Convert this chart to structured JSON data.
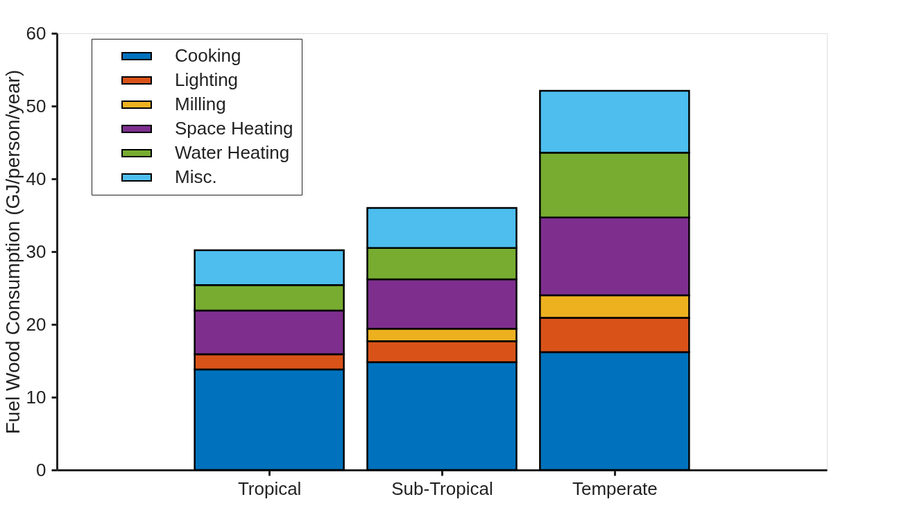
{
  "chart_data": {
    "type": "bar",
    "stacked": true,
    "ylabel": "Fuel Wood Consumption (GJ/person/year)",
    "categories": [
      "Tropical",
      "Sub-Tropical",
      "Temperate"
    ],
    "series": [
      {
        "name": "Cooking",
        "color": "#0072bd",
        "values": [
          13.8,
          14.8,
          16.2
        ]
      },
      {
        "name": "Lighting",
        "color": "#d95319",
        "values": [
          2.1,
          2.9,
          4.7
        ]
      },
      {
        "name": "Milling",
        "color": "#edb120",
        "values": [
          0,
          1.7,
          3.1
        ]
      },
      {
        "name": "Space Heating",
        "color": "#7e2f8e",
        "values": [
          6.0,
          6.8,
          10.7
        ]
      },
      {
        "name": "Water Heating",
        "color": "#77ac30",
        "values": [
          3.5,
          4.3,
          8.9
        ]
      },
      {
        "name": "Misc.",
        "color": "#4dbeee",
        "values": [
          4.8,
          5.5,
          8.5
        ]
      }
    ],
    "ylim": [
      0,
      60
    ],
    "yticks": [
      0,
      10,
      20,
      30,
      40,
      50,
      60
    ],
    "grid": false,
    "legend": "top left"
  }
}
